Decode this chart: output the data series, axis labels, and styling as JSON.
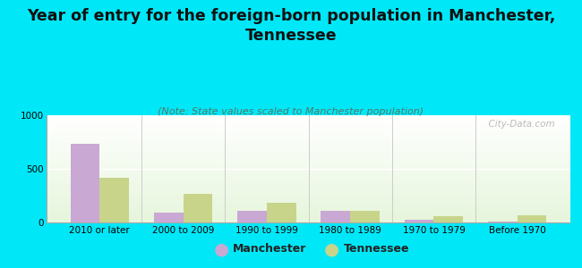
{
  "title": "Year of entry for the foreign-born population in Manchester,\nTennessee",
  "subtitle": "(Note: State values scaled to Manchester population)",
  "categories": [
    "2010 or later",
    "2000 to 2009",
    "1990 to 1999",
    "1980 to 1989",
    "1970 to 1979",
    "Before 1970"
  ],
  "manchester_values": [
    730,
    90,
    110,
    110,
    25,
    5
  ],
  "tennessee_values": [
    420,
    270,
    185,
    105,
    60,
    70
  ],
  "manchester_color": "#c9a8d4",
  "tennessee_color": "#c8d48a",
  "background_color": "#00e8f8",
  "ylim": [
    0,
    1000
  ],
  "yticks": [
    0,
    500,
    1000
  ],
  "bar_width": 0.35,
  "title_fontsize": 12.5,
  "subtitle_fontsize": 8,
  "tick_fontsize": 7.5,
  "legend_fontsize": 9,
  "watermark": "  City-Data.com"
}
